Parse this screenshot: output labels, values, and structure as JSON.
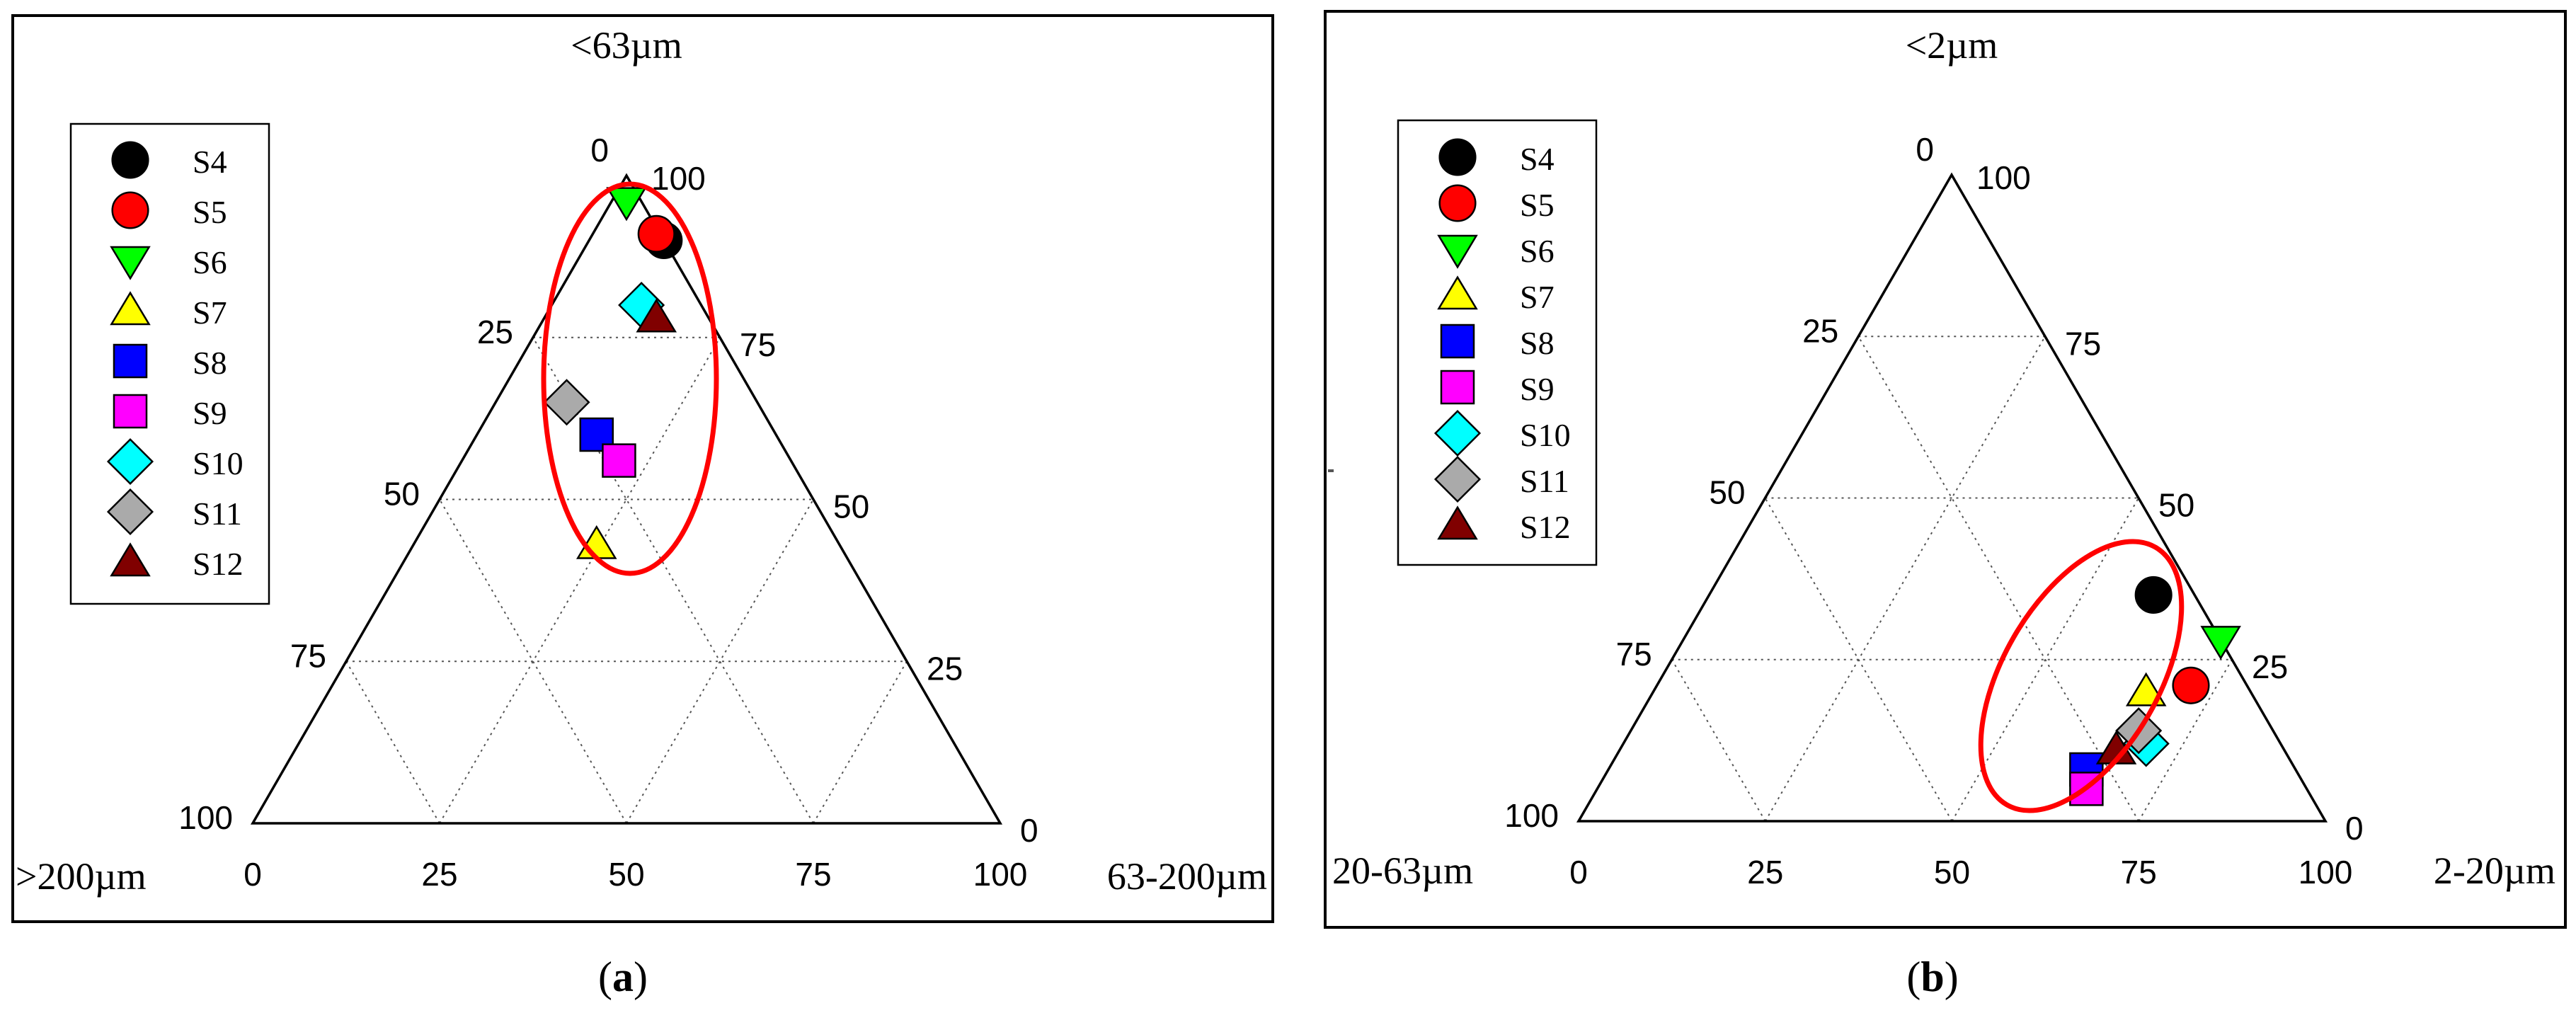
{
  "chart_data": [
    {
      "type": "scatter",
      "subtype": "ternary",
      "panel_label": "a",
      "apex_labels": {
        "top": "<63µm",
        "left": ">200µm",
        "right": "63-200µm"
      },
      "ticks": {
        "bottom": [
          "0",
          "25",
          "50",
          "75",
          "100"
        ],
        "left": [
          "0",
          "25",
          "50",
          "75",
          "100"
        ],
        "right": [
          "100",
          "75",
          "50",
          "25",
          "0"
        ]
      },
      "grid": true,
      "legend_position": "top-left",
      "note": "values are top-apex (fine) fraction t and bottom-axis value b (0-100), bottom axis 0 at left vertex",
      "series": [
        {
          "name": "S4",
          "marker": "circle",
          "color": "#000000",
          "t": 90,
          "b": 55
        },
        {
          "name": "S5",
          "marker": "circle",
          "color": "#ff0000",
          "t": 91,
          "b": 54
        },
        {
          "name": "S6",
          "marker": "triangle-down",
          "color": "#00ff00",
          "t": 96,
          "b": 50
        },
        {
          "name": "S7",
          "marker": "triangle-up",
          "color": "#ffff00",
          "t": 43,
          "b": 46
        },
        {
          "name": "S8",
          "marker": "square",
          "color": "#0000ff",
          "t": 60,
          "b": 46
        },
        {
          "name": "S9",
          "marker": "square",
          "color": "#ff00ff",
          "t": 56,
          "b": 49
        },
        {
          "name": "S10",
          "marker": "diamond",
          "color": "#00ffff",
          "t": 80,
          "b": 52
        },
        {
          "name": "S11",
          "marker": "diamond",
          "color": "#aaaaaa",
          "t": 65,
          "b": 42
        },
        {
          "name": "S12",
          "marker": "triangle-up",
          "color": "#800000",
          "t": 78,
          "b": 54
        }
      ],
      "highlight": "red ellipse around all points"
    },
    {
      "type": "scatter",
      "subtype": "ternary",
      "panel_label": "b",
      "apex_labels": {
        "top": "<2µm",
        "left": "20-63µm",
        "right": "2-20µm"
      },
      "ticks": {
        "bottom": [
          "0",
          "25",
          "50",
          "75",
          "100"
        ],
        "left": [
          "0",
          "25",
          "50",
          "75",
          "100"
        ],
        "right": [
          "100",
          "75",
          "50",
          "25",
          "0"
        ]
      },
      "grid": true,
      "legend_position": "top-left",
      "series": [
        {
          "name": "S4",
          "marker": "circle",
          "color": "#000000",
          "t": 35,
          "b": 77
        },
        {
          "name": "S5",
          "marker": "circle",
          "color": "#ff0000",
          "t": 21,
          "b": 82
        },
        {
          "name": "S6",
          "marker": "triangle-down",
          "color": "#00ff00",
          "t": 28,
          "b": 86
        },
        {
          "name": "S7",
          "marker": "triangle-up",
          "color": "#ffff00",
          "t": 20,
          "b": 76
        },
        {
          "name": "S8",
          "marker": "square",
          "color": "#0000ff",
          "t": 8,
          "b": 68
        },
        {
          "name": "S9",
          "marker": "square",
          "color": "#ff00ff",
          "t": 5,
          "b": 68
        },
        {
          "name": "S10",
          "marker": "diamond",
          "color": "#00ffff",
          "t": 12,
          "b": 76
        },
        {
          "name": "S11",
          "marker": "diamond",
          "color": "#aaaaaa",
          "t": 14,
          "b": 75
        },
        {
          "name": "S12",
          "marker": "triangle-up",
          "color": "#800000",
          "t": 11,
          "b": 72
        }
      ],
      "highlight": "red ellipse around all points"
    }
  ],
  "captions": [
    "a",
    "b"
  ],
  "colors": {
    "frame": "#000000",
    "highlight": "#ff0000",
    "grid": "#555555"
  }
}
